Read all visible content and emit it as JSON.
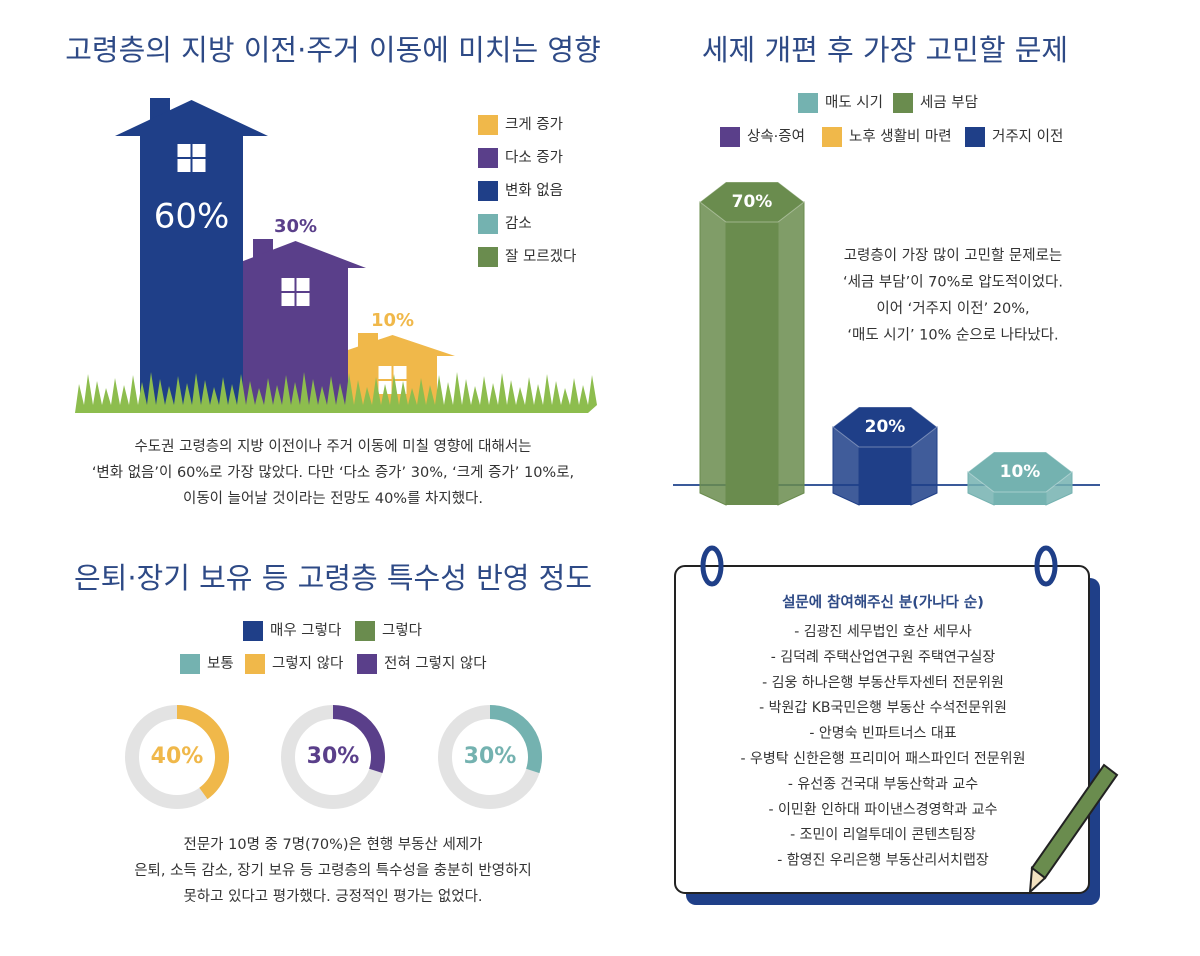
{
  "chart_data": [
    {
      "type": "house",
      "title": "고령층의 지방 이전·주거 이동에 미치는 영향",
      "categories": [
        "크게 증가",
        "다소 증가",
        "변화 없음",
        "감소",
        "잘 모르겠다"
      ],
      "colors": [
        "#f0b84a",
        "#5a3f8a",
        "#1f3f88",
        "#74b2b0",
        "#6a8c4e"
      ],
      "values": [
        10,
        30,
        60,
        0,
        0
      ],
      "value_labels": [
        "10%",
        "30%",
        "60%",
        null,
        null
      ],
      "description": [
        "수도권 고령층의 지방 이전이나 주거 이동에 미칠 영향에 대해서는",
        "‘변화 없음’이 60%로 가장 많았다. 다만 ‘다소 증가’ 30%, ‘크게 증가’ 10%로,",
        "이동이 늘어날 것이라는 전망도 40%를 차지했다."
      ]
    },
    {
      "type": "prism",
      "title": "세제 개편 후 가장 고민할 문제",
      "categories": [
        "매도 시기",
        "세금 부담",
        "상속·증여",
        "노후 생활비 마련",
        "거주지 이전"
      ],
      "colors": [
        "#74b2b0",
        "#6a8c4e",
        "#5a3f8a",
        "#f0b84a",
        "#1f3f88"
      ],
      "values": [
        10,
        70,
        0,
        0,
        20
      ],
      "value_labels": [
        "10%",
        "70%",
        null,
        null,
        "20%"
      ],
      "annotation": [
        "고령층이 가장 많이 고민할 문제로는",
        "‘세금 부담’이 70%로 압도적이었다.",
        "이어 ‘거주지 이전’ 20%,",
        "‘매도 시기’ 10% 순으로 나타났다."
      ]
    },
    {
      "type": "donut",
      "title": "은퇴·장기 보유 등 고령층 특수성 반영 정도",
      "categories": [
        "매우 그렇다",
        "그렇다",
        "보통",
        "그렇지 않다",
        "전혀 그렇지 않다"
      ],
      "colors": [
        "#1f3f88",
        "#6a8c4e",
        "#74b2b0",
        "#f0b84a",
        "#5a3f8a"
      ],
      "values": [
        0,
        0,
        30,
        40,
        30
      ],
      "value_labels": [
        null,
        null,
        "30%",
        "40%",
        "30%"
      ],
      "description": [
        "전문가 10명 중 7명(70%)은 현행 부동산 세제가",
        "은퇴, 소득 감소, 장기 보유 등 고령층의 특수성을 충분히 반영하지",
        "못하고 있다고 평가했다. 긍정적인 평가는 없었다."
      ]
    }
  ],
  "participants": {
    "title": "설문에 참여해주신 분(가나다 순)",
    "items": [
      "- 김광진 세무법인 호산 세무사",
      "- 김덕례 주택산업연구원 주택연구실장",
      "- 김웅 하나은행 부동산투자센터 전문위원",
      "- 박원갑 KB국민은행 부동산 수석전문위원",
      "- 안명숙 빈파트너스 대표",
      "- 우병탁 신한은행 프리미어 패스파인더 전문위원",
      "- 유선종 건국대 부동산학과 교수",
      "- 이민환 인하대 파이낸스경영학과 교수",
      "- 조민이 리얼투데이 콘텐츠팀장",
      "- 함영진 우리은행 부동산리서치랩장"
    ]
  }
}
